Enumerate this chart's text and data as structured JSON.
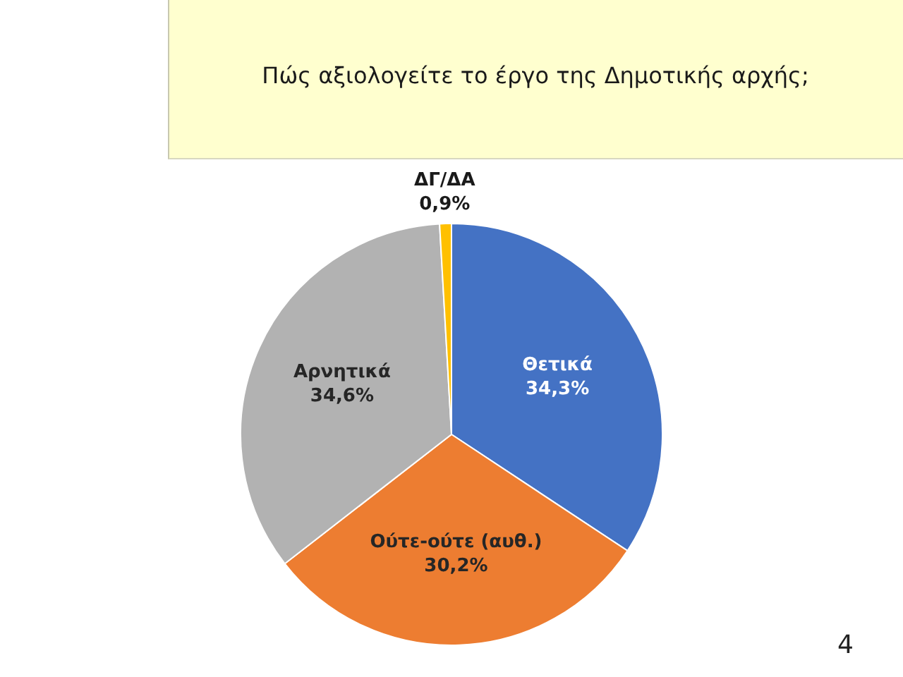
{
  "chart_data": {
    "type": "pie",
    "title": "Πώς αξιολογείτε το έργο της Δημοτικής αρχής;",
    "categories": [
      "Θετικά",
      "Ούτε-ούτε (αυθ.)",
      "Αρνητικά",
      "ΔΓ/ΔΑ"
    ],
    "values": [
      34.3,
      30.2,
      34.6,
      0.9
    ],
    "colors": [
      "#4472c4",
      "#ed7d31",
      "#b2b2b2",
      "#ffc000"
    ],
    "value_labels": [
      "34,3%",
      "30,2%",
      "34,6%",
      "0,9%"
    ],
    "annotations": [
      "4"
    ]
  }
}
